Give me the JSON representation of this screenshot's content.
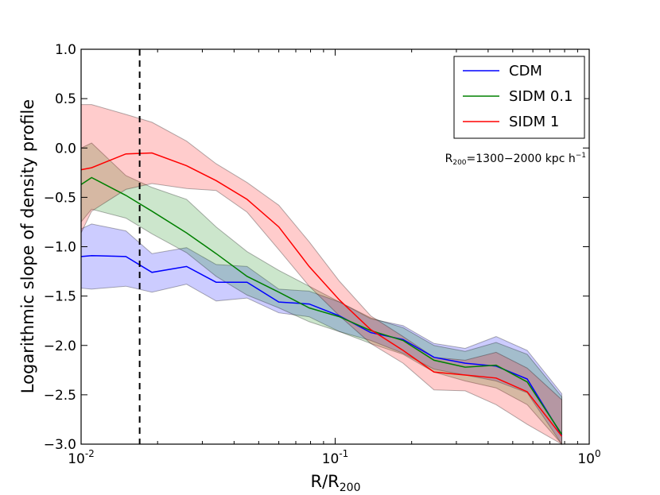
{
  "chart_data": {
    "type": "line",
    "xscale": "log",
    "xlim": [
      0.01,
      1.0
    ],
    "ylim": [
      -3.0,
      1.0
    ],
    "xlabel": "R/R",
    "xlabel_sub": "200",
    "ylabel": "Logarithmic slope of density profile",
    "x_ticks": [
      {
        "value": 0.01,
        "base": "10",
        "exp": "-2"
      },
      {
        "value": 0.1,
        "base": "10",
        "exp": "-1"
      },
      {
        "value": 1.0,
        "base": "10",
        "exp": "0"
      }
    ],
    "y_ticks": [
      {
        "value": 1.0,
        "label": "1.0"
      },
      {
        "value": 0.5,
        "label": "0.5"
      },
      {
        "value": 0.0,
        "label": "0.0"
      },
      {
        "value": -0.5,
        "label": "−0.5"
      },
      {
        "value": -1.0,
        "label": "−1.0"
      },
      {
        "value": -1.5,
        "label": "−1.5"
      },
      {
        "value": -2.0,
        "label": "−2.0"
      },
      {
        "value": -2.5,
        "label": "−2.5"
      },
      {
        "value": -3.0,
        "label": "−3.0"
      }
    ],
    "vline": {
      "x": 0.017,
      "style": "dashed"
    },
    "legend_position": "top-right",
    "annotation": {
      "main": "R",
      "sub": "200",
      "rest": "=1300−2000 kpc h",
      "sup": "−1"
    },
    "series": [
      {
        "name": "CDM",
        "color": "#0000ff",
        "x": [
          0.01,
          0.011,
          0.015,
          0.019,
          0.026,
          0.034,
          0.045,
          0.06,
          0.079,
          0.104,
          0.138,
          0.185,
          0.245,
          0.325,
          0.43,
          0.57,
          0.78
        ],
        "y": [
          -1.1,
          -1.09,
          -1.1,
          -1.26,
          -1.2,
          -1.36,
          -1.36,
          -1.56,
          -1.58,
          -1.7,
          -1.87,
          -1.94,
          -2.12,
          -2.18,
          -2.21,
          -2.34,
          -2.91
        ],
        "y_low": [
          -1.42,
          -1.43,
          -1.4,
          -1.46,
          -1.38,
          -1.55,
          -1.52,
          -1.67,
          -1.71,
          -1.86,
          -1.95,
          -2.08,
          -2.24,
          -2.3,
          -2.36,
          -2.48,
          -3.0
        ],
        "y_high": [
          -0.82,
          -0.77,
          -0.84,
          -1.07,
          -1.01,
          -1.18,
          -1.2,
          -1.43,
          -1.45,
          -1.56,
          -1.73,
          -1.8,
          -1.98,
          -2.03,
          -1.91,
          -2.05,
          -2.49
        ]
      },
      {
        "name": "SIDM 0.1",
        "color": "#008000",
        "x": [
          0.01,
          0.011,
          0.015,
          0.019,
          0.026,
          0.034,
          0.045,
          0.06,
          0.079,
          0.104,
          0.138,
          0.185,
          0.245,
          0.325,
          0.43,
          0.57,
          0.78
        ],
        "y": [
          -0.37,
          -0.3,
          -0.48,
          -0.64,
          -0.86,
          -1.07,
          -1.3,
          -1.46,
          -1.62,
          -1.71,
          -1.85,
          -1.95,
          -2.15,
          -2.22,
          -2.2,
          -2.37,
          -2.9
        ],
        "y_low": [
          -0.75,
          -0.62,
          -0.71,
          -0.87,
          -1.06,
          -1.3,
          -1.49,
          -1.62,
          -1.76,
          -1.86,
          -1.98,
          -2.09,
          -2.27,
          -2.36,
          -2.43,
          -2.6,
          -3.0
        ],
        "y_high": [
          0.0,
          0.05,
          -0.28,
          -0.4,
          -0.52,
          -0.8,
          -1.05,
          -1.24,
          -1.4,
          -1.56,
          -1.72,
          -1.82,
          -2.0,
          -2.06,
          -1.97,
          -2.09,
          -2.52
        ]
      },
      {
        "name": "SIDM 1",
        "color": "#ff0000",
        "x": [
          0.01,
          0.011,
          0.015,
          0.019,
          0.026,
          0.034,
          0.045,
          0.06,
          0.079,
          0.104,
          0.138,
          0.185,
          0.245,
          0.325,
          0.43,
          0.57,
          0.78
        ],
        "y": [
          -0.22,
          -0.2,
          -0.06,
          -0.05,
          -0.18,
          -0.33,
          -0.52,
          -0.8,
          -1.2,
          -1.54,
          -1.84,
          -2.05,
          -2.27,
          -2.3,
          -2.33,
          -2.47,
          -2.92
        ],
        "y_low": [
          -0.86,
          -0.64,
          -0.42,
          -0.36,
          -0.41,
          -0.43,
          -0.65,
          -1.03,
          -1.4,
          -1.7,
          -1.98,
          -2.18,
          -2.45,
          -2.46,
          -2.6,
          -2.8,
          -3.0
        ],
        "y_high": [
          0.44,
          0.44,
          0.34,
          0.26,
          0.07,
          -0.16,
          -0.35,
          -0.58,
          -0.95,
          -1.35,
          -1.7,
          -1.91,
          -2.12,
          -2.15,
          -2.07,
          -2.23,
          -2.55
        ]
      }
    ]
  }
}
